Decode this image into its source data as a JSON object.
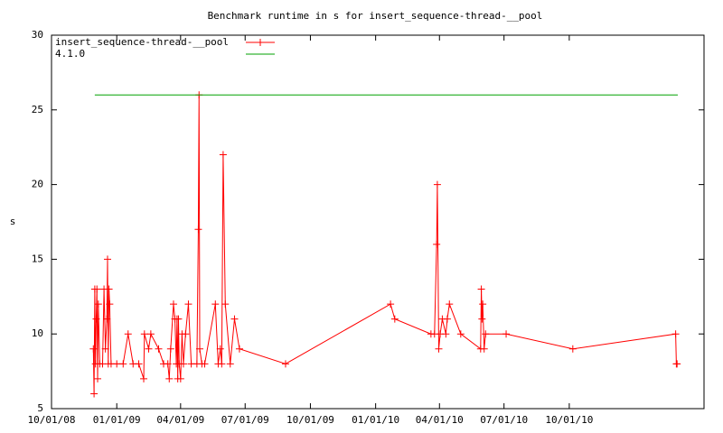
{
  "chart_data": {
    "type": "line",
    "title": "Benchmark runtime in s for insert_sequence-thread-__pool",
    "y_label": "s",
    "xlim": [
      "2008-10-01",
      "2011-04-09"
    ],
    "xticks": [
      {
        "value": "2008-10-01",
        "label": "10/01/08"
      },
      {
        "value": "2009-01-01",
        "label": "01/01/09"
      },
      {
        "value": "2009-04-01",
        "label": "04/01/09"
      },
      {
        "value": "2009-07-01",
        "label": "07/01/09"
      },
      {
        "value": "2009-10-01",
        "label": "10/01/09"
      },
      {
        "value": "2010-01-01",
        "label": "01/01/10"
      },
      {
        "value": "2010-04-01",
        "label": "04/01/10"
      },
      {
        "value": "2010-07-01",
        "label": "07/01/10"
      },
      {
        "value": "2010-10-01",
        "label": "10/01/10"
      }
    ],
    "ylim": [
      5,
      30
    ],
    "yticks": [
      5,
      10,
      15,
      20,
      25,
      30
    ],
    "grid": false,
    "legend": "top-left",
    "series": [
      {
        "name": "insert_sequence-thread-__pool",
        "color": "#ff0000",
        "markers": true,
        "x": [
          "2008-11-29",
          "2008-11-30",
          "2008-12-01",
          "2008-12-02",
          "2008-12-03",
          "2008-12-04",
          "2008-12-05",
          "2008-12-06",
          "2008-12-08",
          "2008-12-12",
          "2008-12-14",
          "2008-12-16",
          "2008-12-18",
          "2008-12-19",
          "2008-12-20",
          "2008-12-21",
          "2008-12-22",
          "2008-12-24",
          "2009-01-01",
          "2009-01-10",
          "2009-01-17",
          "2009-01-24",
          "2009-02-01",
          "2009-02-08",
          "2009-02-09",
          "2009-02-15",
          "2009-02-18",
          "2009-03-01",
          "2009-03-08",
          "2009-03-14",
          "2009-03-16",
          "2009-03-18",
          "2009-03-22",
          "2009-03-24",
          "2009-03-26",
          "2009-03-27",
          "2009-03-28",
          "2009-03-29",
          "2009-03-30",
          "2009-04-01",
          "2009-04-03",
          "2009-04-05",
          "2009-04-08",
          "2009-04-12",
          "2009-04-16",
          "2009-04-24",
          "2009-04-26",
          "2009-04-27",
          "2009-04-28",
          "2009-05-01",
          "2009-05-05",
          "2009-05-20",
          "2009-05-24",
          "2009-05-27",
          "2009-05-29",
          "2009-05-31",
          "2009-06-03",
          "2009-06-10",
          "2009-06-16",
          "2009-06-23",
          "2009-08-27",
          "2010-01-22",
          "2010-01-28",
          "2010-03-20",
          "2010-03-25",
          "2010-03-28",
          "2010-03-29",
          "2010-03-31",
          "2010-04-02",
          "2010-04-05",
          "2010-04-10",
          "2010-04-12",
          "2010-04-15",
          "2010-05-01",
          "2010-05-29",
          "2010-05-30",
          "2010-05-31",
          "2010-06-01",
          "2010-06-03",
          "2010-06-05",
          "2010-07-04",
          "2010-10-06",
          "2011-02-28",
          "2011-03-01",
          "2011-03-02"
        ],
        "values": [
          9,
          6,
          13,
          8,
          11,
          13,
          7,
          12,
          8,
          8,
          13,
          9,
          11,
          15,
          8,
          13,
          12,
          8,
          8,
          8,
          10,
          8,
          8,
          7,
          10,
          9,
          10,
          9,
          8,
          8,
          7,
          9,
          12,
          11,
          8,
          11,
          7,
          11,
          8,
          7,
          10,
          8,
          10,
          12,
          8,
          8,
          17,
          26,
          9,
          8,
          8,
          12,
          8,
          9,
          8,
          22,
          12,
          8,
          11,
          9,
          8,
          12,
          11,
          10,
          10,
          16,
          20,
          9,
          10,
          11,
          10,
          11,
          12,
          10,
          9,
          13,
          11,
          12,
          9,
          10,
          10,
          9,
          10,
          8,
          8
        ]
      },
      {
        "name": "4.1.0",
        "color": "#00a000",
        "markers": false,
        "x": [
          "2008-12-01",
          "2011-03-03"
        ],
        "values": [
          26,
          26
        ]
      }
    ]
  }
}
